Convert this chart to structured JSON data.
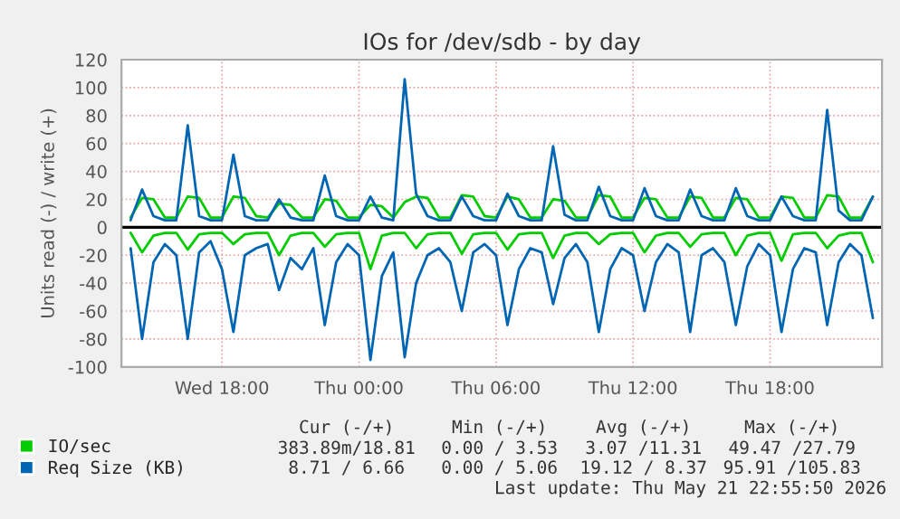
{
  "chart_data": {
    "type": "line",
    "title": "IOs for /dev/sdb - by day",
    "ylabel": "Units read (-) / write (+)",
    "x": [
      "2026-05-20T14:00",
      "2026-05-20T14:30",
      "2026-05-20T15:00",
      "2026-05-20T15:30",
      "2026-05-20T16:00",
      "2026-05-20T16:30",
      "2026-05-20T17:00",
      "2026-05-20T17:30",
      "2026-05-20T18:00",
      "2026-05-20T18:30",
      "2026-05-20T19:00",
      "2026-05-20T19:30",
      "2026-05-20T20:00",
      "2026-05-20T20:30",
      "2026-05-20T21:00",
      "2026-05-20T21:30",
      "2026-05-20T22:00",
      "2026-05-20T22:30",
      "2026-05-20T23:00",
      "2026-05-20T23:30",
      "2026-05-21T00:00",
      "2026-05-21T00:30",
      "2026-05-21T01:00",
      "2026-05-21T01:30",
      "2026-05-21T02:00",
      "2026-05-21T02:30",
      "2026-05-21T03:00",
      "2026-05-21T03:30",
      "2026-05-21T04:00",
      "2026-05-21T04:30",
      "2026-05-21T05:00",
      "2026-05-21T05:30",
      "2026-05-21T06:00",
      "2026-05-21T06:30",
      "2026-05-21T07:00",
      "2026-05-21T07:30",
      "2026-05-21T08:00",
      "2026-05-21T08:30",
      "2026-05-21T09:00",
      "2026-05-21T09:30",
      "2026-05-21T10:00",
      "2026-05-21T10:30",
      "2026-05-21T11:00",
      "2026-05-21T11:30",
      "2026-05-21T12:00",
      "2026-05-21T12:30",
      "2026-05-21T13:00",
      "2026-05-21T13:30",
      "2026-05-21T14:00",
      "2026-05-21T14:30",
      "2026-05-21T15:00",
      "2026-05-21T15:30",
      "2026-05-21T16:00",
      "2026-05-21T16:30",
      "2026-05-21T17:00",
      "2026-05-21T17:30",
      "2026-05-21T18:00",
      "2026-05-21T18:30",
      "2026-05-21T19:00",
      "2026-05-21T19:30",
      "2026-05-21T20:00",
      "2026-05-21T20:30",
      "2026-05-21T21:00",
      "2026-05-21T21:30",
      "2026-05-21T22:00",
      "2026-05-21T22:30"
    ],
    "series": [
      {
        "color": "#00cc00",
        "values": [
          -4,
          -18,
          -6,
          -4,
          -4,
          -16,
          -5,
          -4,
          -4,
          -12,
          -5,
          -4,
          -4,
          -20,
          -6,
          -4,
          -4,
          -14,
          -5,
          -4,
          -4,
          -30,
          -6,
          -4,
          -4,
          -15,
          -5,
          -4,
          -4,
          -19,
          -5,
          -4,
          -4,
          -16,
          -5,
          -4,
          -4,
          -22,
          -6,
          -4,
          -4,
          -12,
          -5,
          -4,
          -4,
          -18,
          -6,
          -4,
          -4,
          -14,
          -5,
          -4,
          -4,
          -20,
          -6,
          -4,
          -4,
          -24,
          -5,
          -4,
          -4,
          -15,
          -6,
          -4,
          -4,
          -25
        ]
      },
      {
        "name": "IO/sec",
        "color": "#00cc00",
        "values": [
          7,
          21,
          20,
          7,
          7,
          22,
          21,
          7,
          7,
          22,
          21,
          8,
          7,
          17,
          16,
          7,
          7,
          20,
          19,
          7,
          7,
          16,
          15,
          7,
          18,
          22,
          21,
          7,
          7,
          23,
          22,
          8,
          7,
          22,
          20,
          7,
          7,
          20,
          19,
          7,
          7,
          23,
          22,
          7,
          7,
          21,
          20,
          7,
          7,
          22,
          21,
          7,
          7,
          21,
          20,
          7,
          7,
          22,
          21,
          7,
          7,
          23,
          22,
          7,
          7,
          22
        ]
      },
      {
        "color": "#0066b3",
        "values": [
          -15,
          -80,
          -25,
          -12,
          -20,
          -80,
          -18,
          -10,
          -30,
          -75,
          -20,
          -15,
          -12,
          -45,
          -22,
          -30,
          -15,
          -70,
          -25,
          -12,
          -20,
          -95,
          -35,
          -18,
          -93,
          -40,
          -20,
          -15,
          -25,
          -60,
          -18,
          -12,
          -20,
          -70,
          -30,
          -15,
          -18,
          -55,
          -22,
          -12,
          -25,
          -75,
          -30,
          -15,
          -20,
          -60,
          -25,
          -12,
          -18,
          -75,
          -20,
          -15,
          -25,
          -70,
          -28,
          -12,
          -20,
          -75,
          -30,
          -15,
          -18,
          -70,
          -25,
          -12,
          -20,
          -65
        ]
      },
      {
        "name": "Req Size (KB)",
        "color": "#0066b3",
        "values": [
          5,
          27,
          8,
          5,
          5,
          73,
          8,
          5,
          5,
          52,
          8,
          5,
          5,
          20,
          7,
          5,
          5,
          37,
          8,
          5,
          5,
          22,
          7,
          5,
          106,
          24,
          8,
          5,
          5,
          22,
          8,
          5,
          5,
          24,
          8,
          5,
          5,
          58,
          9,
          5,
          5,
          29,
          8,
          5,
          5,
          28,
          8,
          5,
          5,
          27,
          8,
          5,
          5,
          28,
          8,
          5,
          5,
          22,
          8,
          5,
          5,
          84,
          12,
          5,
          5,
          22
        ]
      }
    ],
    "xlim": [
      "2026-05-20T13:36",
      "2026-05-21T22:54"
    ],
    "xticks": [
      {
        "value": "2026-05-20T18:00",
        "label": "Wed 18:00"
      },
      {
        "value": "2026-05-21T00:00",
        "label": "Thu 00:00"
      },
      {
        "value": "2026-05-21T06:00",
        "label": "Thu 06:00"
      },
      {
        "value": "2026-05-21T12:00",
        "label": "Thu 12:00"
      },
      {
        "value": "2026-05-21T18:00",
        "label": "Thu 18:00"
      }
    ],
    "ylim": [
      -100,
      120
    ],
    "yticks": [
      -100,
      -80,
      -60,
      -40,
      -20,
      0,
      20,
      40,
      60,
      80,
      100,
      120
    ],
    "ref_lines": [
      {
        "axis": "y",
        "value": 0,
        "color": "#000000"
      }
    ],
    "grid": true,
    "legend": "bottom",
    "marker": "none",
    "line_style": "solid",
    "annotations": [
      "Cur (-/+)",
      "Min (-/+)",
      "Avg (-/+)",
      "Max (-/+)",
      "383.89m/18.81",
      "0.00 / 3.53",
      "3.07 /11.31",
      "49.47 /27.79",
      "8.71 / 6.66",
      "0.00 / 5.06",
      "19.12 / 8.37",
      "95.91 /105.83",
      "Last update: Thu May 21 22:55:50 2026"
    ]
  }
}
